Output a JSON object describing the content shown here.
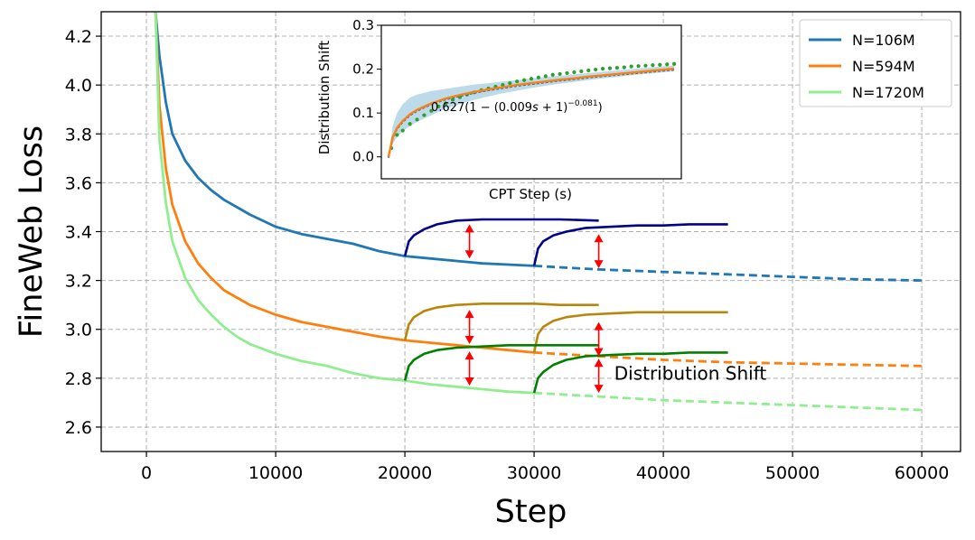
{
  "chart_data": {
    "type": "line",
    "title": "",
    "xlabel": "Step",
    "ylabel": "FineWeb Loss",
    "xlim": [
      -3500,
      63000
    ],
    "ylim": [
      2.5,
      4.3
    ],
    "xticks": [
      0,
      10000,
      20000,
      30000,
      40000,
      50000,
      60000
    ],
    "xtick_labels": [
      "0",
      "10000",
      "20000",
      "30000",
      "40000",
      "50000",
      "60000"
    ],
    "yticks": [
      2.6,
      2.8,
      3.0,
      3.2,
      3.4,
      3.6,
      3.8,
      4.0,
      4.2
    ],
    "ytick_labels": [
      "2.6",
      "2.8",
      "3.0",
      "3.2",
      "3.4",
      "3.6",
      "3.8",
      "4.0",
      "4.2"
    ],
    "grid": true,
    "legend_position": "top-right",
    "legend": [
      "N=106M",
      "N=594M",
      "N=1720M"
    ],
    "colors": {
      "n106": "#1f77b4",
      "n594": "#ff7f0e",
      "n1720": "#90ee90",
      "cpt106": "#00008b",
      "cpt594": "#b8860b",
      "cpt1720": "#008000",
      "arrow": "#ff0000",
      "inset_dots": "#2ca02c",
      "inset_band": "#a6cee3"
    },
    "series": [
      {
        "name": "N=106M",
        "color": "#1f77b4",
        "solid_x": [
          700,
          1000,
          1500,
          2000,
          3000,
          4000,
          5000,
          6000,
          7000,
          8000,
          10000,
          12000,
          14000,
          16000,
          18000,
          20000,
          22000,
          24000,
          26000,
          28000,
          30000
        ],
        "solid_y": [
          4.3,
          4.12,
          3.93,
          3.8,
          3.69,
          3.62,
          3.57,
          3.53,
          3.5,
          3.47,
          3.42,
          3.39,
          3.37,
          3.35,
          3.32,
          3.3,
          3.29,
          3.28,
          3.27,
          3.265,
          3.26
        ],
        "dashed_x": [
          30000,
          35000,
          40000,
          45000,
          50000,
          55000,
          60000
        ],
        "dashed_y": [
          3.26,
          3.245,
          3.235,
          3.225,
          3.215,
          3.205,
          3.2
        ]
      },
      {
        "name": "N=594M",
        "color": "#ff7f0e",
        "solid_x": [
          700,
          1000,
          1500,
          2000,
          3000,
          4000,
          5000,
          6000,
          7000,
          8000,
          10000,
          12000,
          14000,
          16000,
          18000,
          20000,
          22000,
          24000,
          26000,
          28000,
          30000
        ],
        "solid_y": [
          4.3,
          3.92,
          3.66,
          3.51,
          3.36,
          3.27,
          3.21,
          3.16,
          3.13,
          3.1,
          3.06,
          3.03,
          3.01,
          2.99,
          2.97,
          2.955,
          2.945,
          2.935,
          2.925,
          2.915,
          2.905
        ],
        "dashed_x": [
          30000,
          35000,
          40000,
          45000,
          50000,
          55000,
          60000
        ],
        "dashed_y": [
          2.905,
          2.89,
          2.875,
          2.865,
          2.86,
          2.855,
          2.85
        ]
      },
      {
        "name": "N=1720M",
        "color": "#90ee90",
        "solid_x": [
          700,
          1000,
          1500,
          2000,
          3000,
          4000,
          5000,
          6000,
          7000,
          8000,
          10000,
          12000,
          14000,
          16000,
          18000,
          20000,
          22000,
          24000,
          26000,
          28000,
          30000
        ],
        "solid_y": [
          4.3,
          3.78,
          3.52,
          3.36,
          3.21,
          3.12,
          3.06,
          3.01,
          2.97,
          2.94,
          2.9,
          2.87,
          2.85,
          2.82,
          2.8,
          2.79,
          2.775,
          2.765,
          2.755,
          2.745,
          2.74
        ],
        "dashed_x": [
          30000,
          35000,
          40000,
          45000,
          50000,
          55000,
          60000
        ],
        "dashed_y": [
          2.74,
          2.725,
          2.71,
          2.7,
          2.69,
          2.68,
          2.67
        ]
      }
    ],
    "cpt_series": [
      {
        "color": "#00008b",
        "x": [
          20000,
          20300,
          20700,
          21500,
          22500,
          24000,
          26000,
          28000,
          30000,
          32000,
          35000
        ],
        "y": [
          3.3,
          3.36,
          3.385,
          3.41,
          3.43,
          3.445,
          3.45,
          3.45,
          3.45,
          3.45,
          3.445
        ]
      },
      {
        "color": "#00008b",
        "x": [
          30000,
          30300,
          30700,
          31500,
          32500,
          34000,
          36000,
          38000,
          40000,
          42000,
          45000
        ],
        "y": [
          3.26,
          3.33,
          3.36,
          3.385,
          3.4,
          3.415,
          3.42,
          3.425,
          3.425,
          3.43,
          3.43
        ]
      },
      {
        "color": "#b8860b",
        "x": [
          20000,
          20300,
          20700,
          21500,
          22500,
          24000,
          26000,
          28000,
          30000,
          32000,
          35000
        ],
        "y": [
          2.955,
          3.02,
          3.05,
          3.075,
          3.09,
          3.1,
          3.105,
          3.105,
          3.105,
          3.1,
          3.1
        ]
      },
      {
        "color": "#b8860b",
        "x": [
          30000,
          30300,
          30700,
          31500,
          32500,
          34000,
          36000,
          38000,
          40000,
          42000,
          45000
        ],
        "y": [
          2.905,
          2.98,
          3.01,
          3.035,
          3.05,
          3.06,
          3.065,
          3.07,
          3.07,
          3.07,
          3.07
        ]
      },
      {
        "color": "#008000",
        "x": [
          20000,
          20300,
          20700,
          21500,
          22500,
          24000,
          26000,
          28000,
          30000,
          32000,
          35000
        ],
        "y": [
          2.79,
          2.85,
          2.875,
          2.9,
          2.915,
          2.925,
          2.93,
          2.935,
          2.935,
          2.935,
          2.935
        ]
      },
      {
        "color": "#008000",
        "x": [
          30000,
          30300,
          30700,
          31500,
          32500,
          34000,
          36000,
          38000,
          40000,
          42000,
          45000
        ],
        "y": [
          2.74,
          2.8,
          2.825,
          2.855,
          2.875,
          2.89,
          2.895,
          2.9,
          2.9,
          2.905,
          2.905
        ]
      }
    ],
    "arrows": [
      {
        "x": 25000,
        "y1": 3.29,
        "y2": 3.43
      },
      {
        "x": 35000,
        "y1": 3.25,
        "y2": 3.39
      },
      {
        "x": 25000,
        "y1": 2.94,
        "y2": 3.08
      },
      {
        "x": 35000,
        "y1": 2.89,
        "y2": 3.03
      },
      {
        "x": 25000,
        "y1": 2.77,
        "y2": 2.91
      },
      {
        "x": 35000,
        "y1": 2.74,
        "y2": 2.88
      }
    ],
    "annotation": {
      "text": "Distribution Shift",
      "x": 36200,
      "y": 2.82
    },
    "inset": {
      "type": "line",
      "xlabel": "CPT Step (s)",
      "ylabel": "Distribution Shift",
      "xlim": [
        -0.5,
        20.5
      ],
      "ylim": [
        -0.05,
        0.3
      ],
      "yticks": [
        0.0,
        0.1,
        0.2,
        0.3
      ],
      "ytick_labels": [
        "0.0",
        "0.1",
        "0.2",
        "0.3"
      ],
      "formula": "0.627(1 − (0.009s + 1)^−0.081)",
      "formula_main": "0.627(1 − (0.009",
      "formula_s": "s",
      "formula_tail": " + 1)",
      "formula_exp": "−0.081",
      "formula_close": ")",
      "fit_x": [
        0,
        0.3,
        0.6,
        1,
        1.5,
        2,
        3,
        4,
        5,
        6,
        7,
        8,
        9,
        10,
        11,
        12,
        13,
        14,
        15,
        16,
        17,
        18,
        19,
        20
      ],
      "fit_y": [
        0.0,
        0.045,
        0.066,
        0.082,
        0.097,
        0.107,
        0.122,
        0.133,
        0.141,
        0.148,
        0.154,
        0.159,
        0.164,
        0.168,
        0.172,
        0.176,
        0.179,
        0.183,
        0.186,
        0.189,
        0.192,
        0.195,
        0.198,
        0.201
      ],
      "band_upper": [
        0.0,
        0.07,
        0.1,
        0.12,
        0.135,
        0.142,
        0.15,
        0.155,
        0.16,
        0.165,
        0.168,
        0.172,
        0.175,
        0.179,
        0.182,
        0.185,
        0.188,
        0.191,
        0.194,
        0.197,
        0.2,
        0.203,
        0.206,
        0.209
      ],
      "band_lower": [
        0.0,
        0.03,
        0.045,
        0.058,
        0.07,
        0.08,
        0.095,
        0.11,
        0.12,
        0.13,
        0.138,
        0.145,
        0.151,
        0.157,
        0.162,
        0.167,
        0.171,
        0.175,
        0.179,
        0.182,
        0.186,
        0.189,
        0.192,
        0.195
      ],
      "dots_x": [
        0.2,
        0.6,
        1,
        1.5,
        2,
        2.5,
        3,
        3.5,
        4,
        4.5,
        5,
        5.5,
        6,
        6.5,
        7,
        7.5,
        8,
        8.5,
        9,
        9.5,
        10,
        10.5,
        11,
        11.5,
        12,
        12.5,
        13,
        13.5,
        14,
        14.5,
        15,
        15.5,
        16,
        16.5,
        17,
        17.5,
        18,
        18.5,
        19,
        19.5,
        20
      ],
      "dots_y": [
        0.02,
        0.05,
        0.06,
        0.075,
        0.085,
        0.095,
        0.105,
        0.115,
        0.122,
        0.13,
        0.136,
        0.142,
        0.147,
        0.152,
        0.156,
        0.16,
        0.164,
        0.168,
        0.172,
        0.175,
        0.178,
        0.181,
        0.184,
        0.187,
        0.189,
        0.191,
        0.193,
        0.195,
        0.197,
        0.199,
        0.201,
        0.202,
        0.203,
        0.204,
        0.206,
        0.207,
        0.208,
        0.209,
        0.21,
        0.211,
        0.212
      ]
    }
  }
}
